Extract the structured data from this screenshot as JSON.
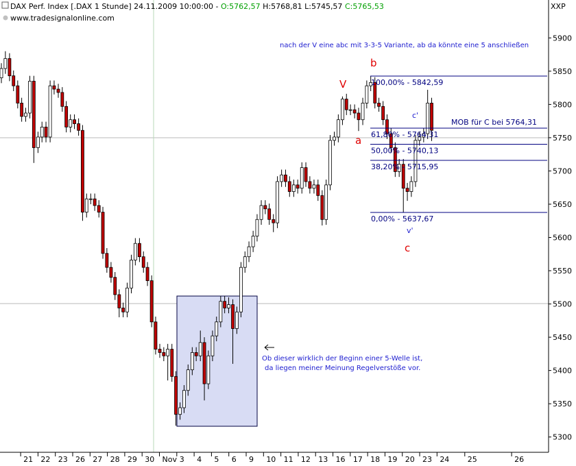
{
  "chart_data": {
    "type": "candlestick",
    "header": {
      "instrument": "DAX Perf. Index [.DAX  1 Stunde]",
      "datetime": "24.11.2009 10:00:00 -",
      "open": "O:5762,57",
      "high": "H:5768,81",
      "low": "L:5745,57",
      "close": "C:5765,53"
    },
    "source": "www.tradesignalonline.com",
    "symbol": "XXP",
    "annotations": {
      "note": "nach der V eine abc mit 3-3-5 Variante, ab da könnte eine 5 anschließen",
      "wave_v": "V",
      "wave_a": "a",
      "wave_b": "b",
      "wave_c": "c",
      "wave_c_prime": "c'",
      "wave_v_prime": "v'",
      "mob": "MOB für C bei 5764,31",
      "comment_1": "Ob dieser wirklich der Beginn einer 5-Welle ist,",
      "comment_2": "da liegen meiner Meinung Regelverstöße vor."
    },
    "fib": [
      {
        "label": "100,00% - 5842,59",
        "value": 5842.59
      },
      {
        "label": "61,80% - 5764,31",
        "value": 5764.31
      },
      {
        "label": "50,00% - 5740,13",
        "value": 5740.13
      },
      {
        "label": "38,20% - 5715,95",
        "value": 5715.95
      },
      {
        "label": "0,00% - 5637,67",
        "value": 5637.67
      }
    ],
    "up_color": "#ffffff",
    "down_color": "#c00000",
    "fib_color": "#000080",
    "xlim": [
      -1.19,
      30.43
    ],
    "xticks": [
      {
        "value": 0,
        "label": "21"
      },
      {
        "value": 1,
        "label": "22"
      },
      {
        "value": 2,
        "label": "23"
      },
      {
        "value": 3,
        "label": "26"
      },
      {
        "value": 4,
        "label": "27"
      },
      {
        "value": 5,
        "label": "28"
      },
      {
        "value": 6,
        "label": "29"
      },
      {
        "value": 7,
        "label": "30"
      },
      {
        "value": 8,
        "label": "Nov"
      },
      {
        "value": 9,
        "label": "3"
      },
      {
        "value": 10,
        "label": "4"
      },
      {
        "value": 11,
        "label": "5"
      },
      {
        "value": 12,
        "label": "6"
      },
      {
        "value": 13,
        "label": "9"
      },
      {
        "value": 14,
        "label": "10"
      },
      {
        "value": 15,
        "label": "11"
      },
      {
        "value": 16,
        "label": "12"
      },
      {
        "value": 17,
        "label": "13"
      },
      {
        "value": 18,
        "label": "16"
      },
      {
        "value": 19,
        "label": "17"
      },
      {
        "value": 20,
        "label": "18"
      },
      {
        "value": 21,
        "label": "19"
      },
      {
        "value": 22,
        "label": "20"
      },
      {
        "value": 23,
        "label": "23"
      },
      {
        "value": 24,
        "label": "24"
      },
      {
        "value": 25.6,
        "label": "25"
      },
      {
        "value": 28.3,
        "label": "26"
      }
    ],
    "ylim": [
      5277,
      5957
    ],
    "yticks": [
      5300,
      5350,
      5400,
      5450,
      5500,
      5550,
      5600,
      5650,
      5700,
      5750,
      5800,
      5850,
      5900
    ],
    "x": [
      -1.11,
      -0.88,
      -0.64,
      -0.41,
      -0.17,
      0.06,
      0.29,
      0.53,
      0.76,
      1.0,
      1.23,
      1.46,
      1.7,
      1.93,
      2.17,
      2.4,
      2.63,
      2.87,
      3.1,
      3.34,
      3.57,
      3.8,
      4.04,
      4.27,
      4.51,
      4.74,
      4.97,
      5.21,
      5.44,
      5.68,
      5.91,
      6.14,
      6.38,
      6.61,
      6.85,
      7.08,
      7.31,
      7.55,
      7.78,
      8.02,
      8.25,
      8.48,
      8.72,
      8.95,
      9.19,
      9.42,
      9.65,
      9.89,
      10.12,
      10.36,
      10.59,
      10.82,
      11.06,
      11.29,
      11.53,
      11.76,
      11.99,
      12.23,
      12.46,
      12.7,
      12.93,
      13.16,
      13.4,
      13.63,
      13.87,
      14.1,
      14.33,
      14.57,
      14.8,
      15.04,
      15.27,
      15.5,
      15.74,
      15.97,
      16.21,
      16.44,
      16.67,
      16.91,
      17.14,
      17.38,
      17.61,
      17.84,
      18.08,
      18.31,
      18.55,
      18.78,
      19.01,
      19.25,
      19.48,
      19.72,
      19.95,
      20.18,
      20.42,
      20.65,
      20.89,
      21.12,
      21.35,
      21.59,
      21.82,
      22.06,
      22.29,
      22.52,
      22.76,
      22.99,
      23.23,
      23.46,
      23.69
    ],
    "open": [
      5840,
      5854,
      5869,
      5843,
      5828,
      5802,
      5782,
      5787,
      5835,
      5735,
      5751,
      5766,
      5751,
      5828,
      5823,
      5818,
      5797,
      5766,
      5777,
      5771,
      5761,
      5638,
      5658,
      5658,
      5648,
      5638,
      5576,
      5555,
      5540,
      5514,
      5494,
      5488,
      5524,
      5566,
      5591,
      5571,
      5555,
      5535,
      5473,
      5432,
      5427,
      5422,
      5432,
      5391,
      5334,
      5344,
      5370,
      5401,
      5427,
      5422,
      5442,
      5380,
      5422,
      5452,
      5473,
      5504,
      5494,
      5499,
      5463,
      5488,
      5555,
      5571,
      5586,
      5602,
      5627,
      5648,
      5643,
      5627,
      5622,
      5684,
      5694,
      5684,
      5669,
      5679,
      5674,
      5705,
      5684,
      5674,
      5679,
      5663,
      5627,
      5679,
      5746,
      5751,
      5777,
      5808,
      5792,
      5792,
      5787,
      5777,
      5802,
      5828,
      5833,
      5802,
      5797,
      5777,
      5756,
      5735,
      5699,
      5710,
      5674,
      5669,
      5684,
      5746,
      5751,
      5756,
      5802
    ],
    "high": [
      5862,
      5880,
      5877,
      5851,
      5836,
      5810,
      5795,
      5843,
      5843,
      5759,
      5774,
      5774,
      5836,
      5836,
      5831,
      5826,
      5805,
      5785,
      5785,
      5779,
      5769,
      5666,
      5666,
      5666,
      5656,
      5646,
      5584,
      5563,
      5548,
      5522,
      5502,
      5532,
      5574,
      5599,
      5599,
      5579,
      5563,
      5543,
      5481,
      5440,
      5435,
      5440,
      5440,
      5399,
      5352,
      5378,
      5409,
      5435,
      5435,
      5460,
      5450,
      5430,
      5460,
      5481,
      5512,
      5512,
      5510,
      5507,
      5496,
      5563,
      5579,
      5594,
      5610,
      5635,
      5656,
      5656,
      5651,
      5635,
      5692,
      5702,
      5702,
      5692,
      5687,
      5687,
      5713,
      5713,
      5692,
      5687,
      5687,
      5671,
      5687,
      5754,
      5759,
      5785,
      5812,
      5816,
      5800,
      5800,
      5795,
      5810,
      5836,
      5843,
      5841,
      5810,
      5805,
      5785,
      5764,
      5743,
      5718,
      5718,
      5682,
      5692,
      5754,
      5759,
      5764,
      5822,
      5810
    ],
    "low": [
      5832,
      5846,
      5835,
      5820,
      5794,
      5774,
      5774,
      5779,
      5712,
      5727,
      5743,
      5743,
      5743,
      5815,
      5810,
      5789,
      5758,
      5758,
      5763,
      5753,
      5625,
      5630,
      5650,
      5640,
      5630,
      5568,
      5547,
      5532,
      5506,
      5480,
      5480,
      5480,
      5516,
      5558,
      5563,
      5547,
      5527,
      5465,
      5424,
      5419,
      5414,
      5385,
      5383,
      5317,
      5326,
      5336,
      5362,
      5393,
      5414,
      5414,
      5355,
      5372,
      5414,
      5444,
      5465,
      5486,
      5486,
      5410,
      5455,
      5480,
      5547,
      5563,
      5578,
      5594,
      5619,
      5635,
      5619,
      5608,
      5614,
      5676,
      5676,
      5661,
      5661,
      5666,
      5666,
      5676,
      5666,
      5666,
      5655,
      5618,
      5619,
      5671,
      5738,
      5743,
      5769,
      5784,
      5784,
      5779,
      5760,
      5769,
      5794,
      5820,
      5794,
      5789,
      5769,
      5748,
      5727,
      5691,
      5691,
      5638,
      5655,
      5661,
      5676,
      5738,
      5743,
      5748,
      5745
    ],
    "close": [
      5854,
      5869,
      5843,
      5828,
      5802,
      5782,
      5787,
      5835,
      5735,
      5751,
      5766,
      5751,
      5828,
      5823,
      5818,
      5797,
      5766,
      5777,
      5771,
      5761,
      5638,
      5658,
      5658,
      5648,
      5638,
      5576,
      5555,
      5540,
      5514,
      5494,
      5488,
      5524,
      5566,
      5591,
      5571,
      5555,
      5535,
      5473,
      5432,
      5427,
      5422,
      5432,
      5391,
      5334,
      5344,
      5370,
      5401,
      5427,
      5422,
      5442,
      5380,
      5422,
      5452,
      5473,
      5504,
      5494,
      5499,
      5463,
      5488,
      5555,
      5571,
      5586,
      5602,
      5627,
      5648,
      5643,
      5627,
      5622,
      5684,
      5694,
      5684,
      5669,
      5679,
      5674,
      5705,
      5684,
      5674,
      5679,
      5663,
      5627,
      5679,
      5746,
      5751,
      5777,
      5808,
      5792,
      5792,
      5787,
      5777,
      5802,
      5828,
      5833,
      5802,
      5797,
      5777,
      5756,
      5735,
      5699,
      5710,
      5674,
      5669,
      5684,
      5746,
      5751,
      5756,
      5802,
      5761
    ]
  }
}
